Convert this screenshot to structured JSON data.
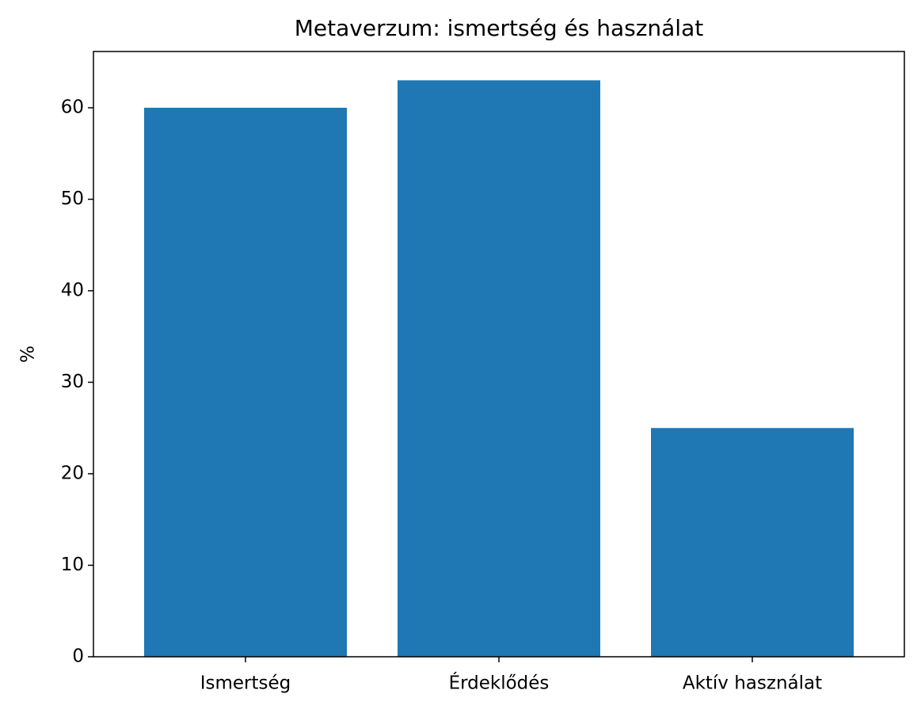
{
  "chart_data": {
    "type": "bar",
    "title": "Metaverzum: ismertség és használat",
    "ylabel": "%",
    "categories": [
      "Ismertség",
      "Érdeklődés",
      "Aktív használat"
    ],
    "values": [
      60,
      63,
      25
    ],
    "color": "#1f77b4",
    "ylim": [
      0,
      66.15
    ],
    "yticks": [
      0,
      10,
      20,
      30,
      40,
      50,
      60
    ],
    "grid": false
  }
}
